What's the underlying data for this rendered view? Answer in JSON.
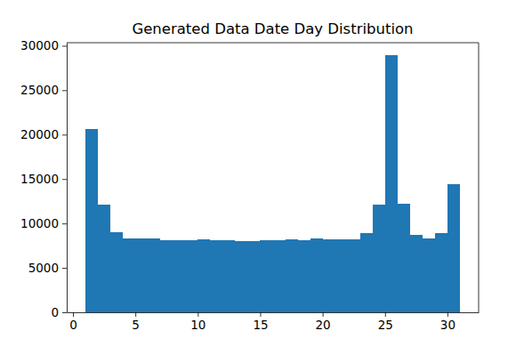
{
  "chart_data": {
    "type": "histogram",
    "title": "Generated Data Date Day Distribution",
    "bins": [
      1,
      2,
      3,
      4,
      5,
      6,
      7,
      8,
      9,
      10,
      11,
      12,
      13,
      14,
      15,
      16,
      17,
      18,
      19,
      20,
      21,
      22,
      23,
      24,
      25,
      26,
      27,
      28,
      29,
      30,
      31
    ],
    "values": [
      20600,
      12100,
      9000,
      8300,
      8300,
      8300,
      8100,
      8100,
      8100,
      8200,
      8100,
      8100,
      8000,
      8000,
      8100,
      8100,
      8200,
      8100,
      8300,
      8200,
      8200,
      8200,
      8900,
      12100,
      28900,
      12200,
      8700,
      8300,
      8900,
      14400
    ],
    "color": "#1f77b4",
    "xlim": [
      -0.5,
      32.5
    ],
    "xticks": [
      0,
      5,
      10,
      15,
      20,
      25,
      30
    ],
    "ylim": [
      0,
      30345
    ],
    "yticks": [
      0,
      5000,
      10000,
      15000,
      20000,
      25000,
      30000
    ],
    "grid": false
  }
}
